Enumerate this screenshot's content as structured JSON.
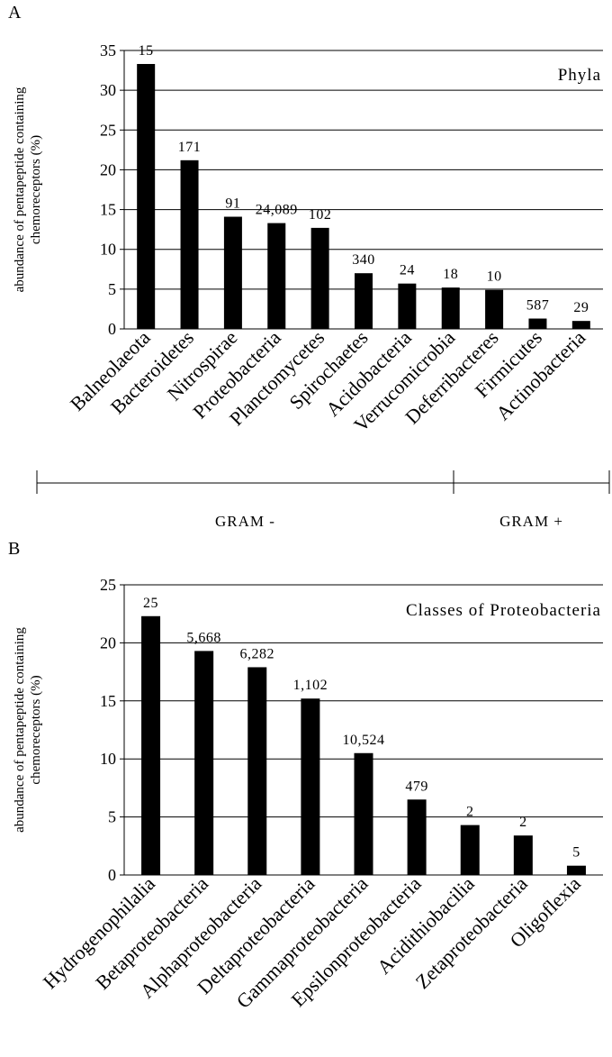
{
  "chart_data": [
    {
      "type": "bar",
      "panel": "A",
      "inset_label": "Phyla",
      "ylabel": "abundance of pentapeptide containing chemoreceptors (%)",
      "xlabel": "",
      "ylim": [
        0,
        35
      ],
      "yticks": [
        0,
        5,
        10,
        15,
        20,
        25,
        30,
        35
      ],
      "grid": true,
      "categories": [
        "Balneolaeota",
        "Bacteroidetes",
        "Nitrospirae",
        "Proteobacteria",
        "Planctomycetes",
        "Spirochaetes",
        "Acidobacteria",
        "Verrucomicrobia",
        "Deferribacteres",
        "Firmicutes",
        "Actinobacteria"
      ],
      "values": [
        33.3,
        21.2,
        14.1,
        13.3,
        12.7,
        7.0,
        5.7,
        5.2,
        4.9,
        1.3,
        1.0
      ],
      "counts": [
        "15",
        "171",
        "91",
        "24,089",
        "102",
        "340",
        "24",
        "18",
        "10",
        "587",
        "29"
      ],
      "groups": [
        {
          "label": "GRAM -",
          "categories": [
            "Balneolaeota",
            "Bacteroidetes",
            "Nitrospirae",
            "Proteobacteria",
            "Planctomycetes",
            "Spirochaetes",
            "Acidobacteria",
            "Verrucomicrobia",
            "Deferribacteres"
          ]
        },
        {
          "label": "GRAM +",
          "categories": [
            "Firmicutes",
            "Actinobacteria"
          ]
        }
      ],
      "bar_color": "#000000"
    },
    {
      "type": "bar",
      "panel": "B",
      "inset_label": "Classes of Proteobacteria",
      "ylabel": "abundance of pentapeptide containing chemoreceptors (%)",
      "xlabel": "",
      "ylim": [
        0,
        25
      ],
      "yticks": [
        0,
        5,
        10,
        15,
        20,
        25
      ],
      "grid": true,
      "categories": [
        "Hydrogenophilalia",
        "Betaproteobacteria",
        "Alphaproteobacteria",
        "Deltaproteobacteria",
        "Gammaproteobacteria",
        "Epsilonproteobacteria",
        "Acidithiobacilia",
        "Zetaproteobacteria",
        "Oligoflexia"
      ],
      "values": [
        22.3,
        19.3,
        17.9,
        15.2,
        10.5,
        6.5,
        4.3,
        3.4,
        0.8
      ],
      "counts": [
        "25",
        "5,668",
        "6,282",
        "1,102",
        "10,524",
        "479",
        "2",
        "2",
        "5"
      ],
      "groups": [],
      "bar_color": "#000000"
    }
  ]
}
